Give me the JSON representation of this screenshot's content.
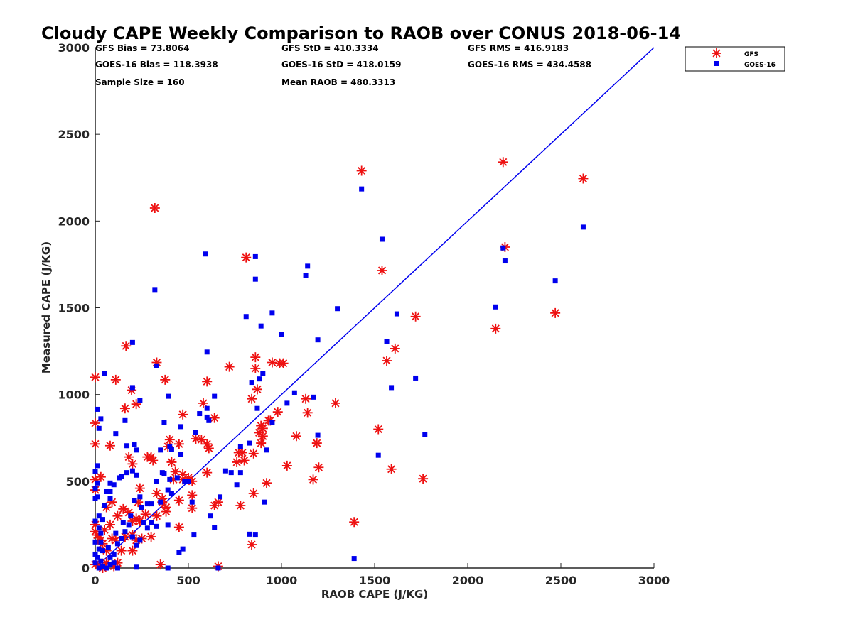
{
  "chart_data": {
    "type": "scatter",
    "title": "Cloudy CAPE Weekly Comparison to RAOB over CONUS 2018-06-14",
    "xlabel": "RAOB CAPE (J/KG)",
    "ylabel": "Measured CAPE (J/KG)",
    "xlim": [
      0,
      3000
    ],
    "ylim": [
      0,
      3000
    ],
    "xticks": [
      "0",
      "500",
      "1000",
      "1500",
      "2000",
      "2500",
      "3000"
    ],
    "yticks": [
      "0",
      "500",
      "1000",
      "1500",
      "2000",
      "2500",
      "3000"
    ],
    "grid": false,
    "legend_position": "top-right",
    "reference_line": {
      "x": [
        0,
        3000
      ],
      "y": [
        0,
        3000
      ],
      "color": "#0000ee"
    },
    "stats": {
      "gfs_bias": "GFS Bias = 73.8064",
      "goes_bias": "GOES-16 Bias = 118.3938",
      "sample_size": "Sample Size = 160",
      "gfs_std": "GFS StD = 410.3334",
      "goes_std": "GOES-16 StD = 418.0159",
      "mean_raob": "Mean RAOB = 480.3313",
      "gfs_rms": "GFS RMS = 416.9183",
      "goes_rms": "GOES-16 RMS = 434.4588"
    },
    "series": [
      {
        "name": "GFS",
        "marker": "asterisk",
        "color": "#ee1111",
        "points": [
          [
            1430,
            2290
          ],
          [
            2190,
            2340
          ],
          [
            2620,
            2245
          ],
          [
            320,
            2075
          ],
          [
            2200,
            1850
          ],
          [
            810,
            1790
          ],
          [
            1540,
            1715
          ],
          [
            2470,
            1470
          ],
          [
            1720,
            1450
          ],
          [
            2150,
            1380
          ],
          [
            165,
            1280
          ],
          [
            1610,
            1265
          ],
          [
            330,
            1185
          ],
          [
            860,
            1215
          ],
          [
            950,
            1185
          ],
          [
            990,
            1180
          ],
          [
            1565,
            1195
          ],
          [
            0,
            1100
          ],
          [
            110,
            1085
          ],
          [
            375,
            1085
          ],
          [
            720,
            1160
          ],
          [
            860,
            1150
          ],
          [
            600,
            1075
          ],
          [
            870,
            1030
          ],
          [
            195,
            1025
          ],
          [
            840,
            975
          ],
          [
            1130,
            975
          ],
          [
            1290,
            950
          ],
          [
            160,
            920
          ],
          [
            220,
            945
          ],
          [
            580,
            950
          ],
          [
            1140,
            895
          ],
          [
            980,
            900
          ],
          [
            640,
            865
          ],
          [
            470,
            885
          ],
          [
            0,
            835
          ],
          [
            940,
            850
          ],
          [
            900,
            805
          ],
          [
            880,
            780
          ],
          [
            1520,
            800
          ],
          [
            1080,
            760
          ],
          [
            400,
            740
          ],
          [
            390,
            700
          ],
          [
            600,
            715
          ],
          [
            610,
            690
          ],
          [
            0,
            715
          ],
          [
            80,
            705
          ],
          [
            1190,
            720
          ],
          [
            890,
            720
          ],
          [
            790,
            665
          ],
          [
            770,
            665
          ],
          [
            850,
            660
          ],
          [
            280,
            640
          ],
          [
            300,
            640
          ],
          [
            310,
            620
          ],
          [
            410,
            610
          ],
          [
            600,
            550
          ],
          [
            430,
            555
          ],
          [
            470,
            540
          ],
          [
            500,
            520
          ],
          [
            540,
            745
          ],
          [
            450,
            715
          ],
          [
            1590,
            570
          ],
          [
            1760,
            515
          ],
          [
            1200,
            580
          ],
          [
            1170,
            510
          ],
          [
            1030,
            590
          ],
          [
            760,
            610
          ],
          [
            30,
            525
          ],
          [
            0,
            510
          ],
          [
            570,
            740
          ],
          [
            520,
            420
          ],
          [
            450,
            390
          ],
          [
            660,
            380
          ],
          [
            640,
            360
          ],
          [
            780,
            360
          ],
          [
            850,
            430
          ],
          [
            920,
            490
          ],
          [
            1390,
            265
          ],
          [
            330,
            430
          ],
          [
            360,
            400
          ],
          [
            380,
            325
          ],
          [
            420,
            510
          ],
          [
            520,
            345
          ],
          [
            150,
            340
          ],
          [
            180,
            320
          ],
          [
            200,
            270
          ],
          [
            120,
            300
          ],
          [
            80,
            250
          ],
          [
            0,
            450
          ],
          [
            0,
            250
          ],
          [
            0,
            210
          ],
          [
            10,
            190
          ],
          [
            20,
            160
          ],
          [
            40,
            140
          ],
          [
            60,
            100
          ],
          [
            90,
            170
          ],
          [
            110,
            160
          ],
          [
            140,
            100
          ],
          [
            200,
            100
          ],
          [
            220,
            160
          ],
          [
            240,
            270
          ],
          [
            270,
            310
          ],
          [
            300,
            180
          ],
          [
            330,
            300
          ],
          [
            360,
            380
          ],
          [
            450,
            235
          ],
          [
            840,
            135
          ],
          [
            350,
            20
          ],
          [
            660,
            10
          ],
          [
            0,
            20
          ],
          [
            20,
            20
          ],
          [
            40,
            0
          ],
          [
            60,
            30
          ],
          [
            100,
            10
          ],
          [
            120,
            30
          ],
          [
            160,
            180
          ],
          [
            200,
            190
          ],
          [
            230,
            380
          ],
          [
            240,
            460
          ],
          [
            220,
            285
          ],
          [
            250,
            170
          ],
          [
            180,
            640
          ],
          [
            200,
            600
          ],
          [
            380,
            350
          ],
          [
            470,
            510
          ],
          [
            520,
            500
          ],
          [
            800,
            620
          ],
          [
            890,
            820
          ],
          [
            900,
            760
          ],
          [
            1010,
            1180
          ],
          [
            930,
            850
          ],
          [
            60,
            350
          ],
          [
            90,
            380
          ],
          [
            30,
            160
          ],
          [
            50,
            220
          ]
        ]
      },
      {
        "name": "GOES-16",
        "marker": "square",
        "color": "#0000ee",
        "points": [
          [
            1430,
            2185
          ],
          [
            2620,
            1965
          ],
          [
            320,
            1605
          ],
          [
            590,
            1810
          ],
          [
            860,
            1795
          ],
          [
            1540,
            1895
          ],
          [
            860,
            1665
          ],
          [
            1140,
            1740
          ],
          [
            1130,
            1685
          ],
          [
            2190,
            1845
          ],
          [
            2200,
            1770
          ],
          [
            2470,
            1655
          ],
          [
            2150,
            1505
          ],
          [
            1300,
            1495
          ],
          [
            810,
            1450
          ],
          [
            950,
            1470
          ],
          [
            1620,
            1465
          ],
          [
            890,
            1395
          ],
          [
            1000,
            1345
          ],
          [
            1195,
            1315
          ],
          [
            1565,
            1305
          ],
          [
            200,
            1300
          ],
          [
            600,
            1245
          ],
          [
            330,
            1165
          ],
          [
            50,
            1120
          ],
          [
            900,
            1120
          ],
          [
            880,
            1090
          ],
          [
            840,
            1070
          ],
          [
            1720,
            1095
          ],
          [
            1590,
            1040
          ],
          [
            200,
            1040
          ],
          [
            10,
            915
          ],
          [
            395,
            990
          ],
          [
            640,
            990
          ],
          [
            1070,
            1010
          ],
          [
            1170,
            985
          ],
          [
            1030,
            950
          ],
          [
            240,
            965
          ],
          [
            600,
            920
          ],
          [
            870,
            920
          ],
          [
            160,
            850
          ],
          [
            30,
            860
          ],
          [
            950,
            840
          ],
          [
            610,
            850
          ],
          [
            20,
            805
          ],
          [
            370,
            840
          ],
          [
            460,
            815
          ],
          [
            1770,
            770
          ],
          [
            1195,
            765
          ],
          [
            110,
            775
          ],
          [
            210,
            710
          ],
          [
            170,
            705
          ],
          [
            400,
            700
          ],
          [
            410,
            685
          ],
          [
            780,
            700
          ],
          [
            830,
            720
          ],
          [
            920,
            680
          ],
          [
            220,
            680
          ],
          [
            350,
            680
          ],
          [
            460,
            655
          ],
          [
            1520,
            650
          ],
          [
            200,
            560
          ],
          [
            220,
            535
          ],
          [
            370,
            545
          ],
          [
            400,
            510
          ],
          [
            500,
            500
          ],
          [
            730,
            550
          ],
          [
            780,
            550
          ],
          [
            0,
            555
          ],
          [
            10,
            590
          ],
          [
            0,
            460
          ],
          [
            10,
            490
          ],
          [
            60,
            440
          ],
          [
            80,
            440
          ],
          [
            100,
            480
          ],
          [
            80,
            490
          ],
          [
            130,
            520
          ],
          [
            330,
            500
          ],
          [
            390,
            450
          ],
          [
            410,
            430
          ],
          [
            560,
            890
          ],
          [
            480,
            500
          ],
          [
            520,
            380
          ],
          [
            350,
            380
          ],
          [
            300,
            370
          ],
          [
            280,
            370
          ],
          [
            240,
            410
          ],
          [
            210,
            390
          ],
          [
            670,
            410
          ],
          [
            620,
            300
          ],
          [
            640,
            235
          ],
          [
            910,
            380
          ],
          [
            760,
            480
          ],
          [
            830,
            195
          ],
          [
            860,
            190
          ],
          [
            1390,
            55
          ],
          [
            0,
            400
          ],
          [
            10,
            410
          ],
          [
            20,
            300
          ],
          [
            40,
            280
          ],
          [
            30,
            200
          ],
          [
            0,
            150
          ],
          [
            0,
            80
          ],
          [
            10,
            60
          ],
          [
            20,
            110
          ],
          [
            40,
            100
          ],
          [
            80,
            60
          ],
          [
            100,
            80
          ],
          [
            120,
            140
          ],
          [
            140,
            170
          ],
          [
            150,
            260
          ],
          [
            180,
            250
          ],
          [
            200,
            180
          ],
          [
            220,
            130
          ],
          [
            240,
            160
          ],
          [
            260,
            260
          ],
          [
            300,
            260
          ],
          [
            330,
            240
          ],
          [
            390,
            250
          ],
          [
            450,
            90
          ],
          [
            470,
            110
          ],
          [
            530,
            190
          ],
          [
            390,
            0
          ],
          [
            660,
            0
          ],
          [
            0,
            30
          ],
          [
            20,
            0
          ],
          [
            40,
            10
          ],
          [
            60,
            0
          ],
          [
            80,
            20
          ],
          [
            100,
            30
          ],
          [
            120,
            0
          ],
          [
            160,
            210
          ],
          [
            170,
            550
          ],
          [
            140,
            530
          ],
          [
            80,
            400
          ],
          [
            50,
            360
          ],
          [
            20,
            230
          ],
          [
            0,
            270
          ],
          [
            220,
            5
          ],
          [
            30,
            150
          ],
          [
            70,
            120
          ],
          [
            110,
            200
          ],
          [
            190,
            300
          ],
          [
            250,
            350
          ],
          [
            280,
            230
          ],
          [
            360,
            550
          ],
          [
            440,
            520
          ],
          [
            540,
            780
          ],
          [
            600,
            870
          ],
          [
            700,
            560
          ],
          [
            30,
            40
          ]
        ]
      }
    ]
  }
}
